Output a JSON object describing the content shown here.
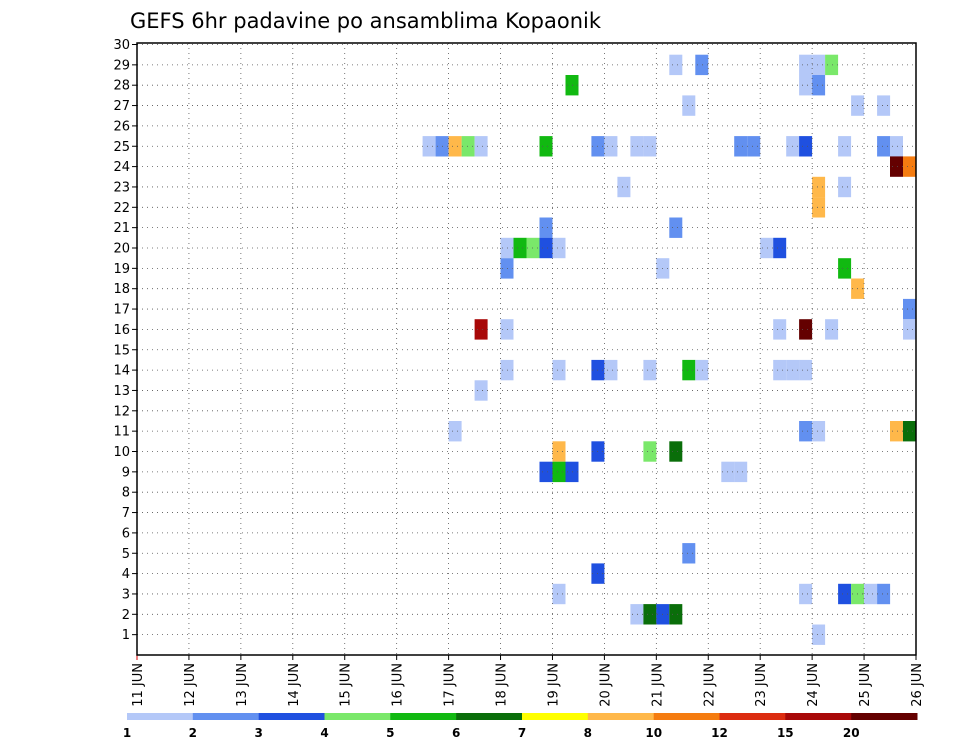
{
  "chart_data": {
    "type": "heatmap",
    "title": "GEFS 6hr padavine po ansamblima Kopaonik",
    "y_ticks": [
      1,
      2,
      3,
      4,
      5,
      6,
      7,
      8,
      9,
      10,
      11,
      12,
      13,
      14,
      15,
      16,
      17,
      18,
      19,
      20,
      21,
      22,
      23,
      24,
      25,
      26,
      27,
      28,
      29,
      30
    ],
    "x_ticks": [
      "11 JUN",
      "12 JUN",
      "13 JUN",
      "14 JUN",
      "15 JUN",
      "16 JUN",
      "17 JUN",
      "18 JUN",
      "19 JUN",
      "20 JUN",
      "21 JUN",
      "22 JUN",
      "23 JUN",
      "24 JUN",
      "25 JUN",
      "26 JUN"
    ],
    "colorbar": {
      "colors": [
        "#b4c8f8",
        "#6290f0",
        "#1f50e0",
        "#7ae86a",
        "#11b911",
        "#0a6e0a",
        "#ffff00",
        "#ffb84a",
        "#f57c10",
        "#dc2c10",
        "#a80808",
        "#640000"
      ],
      "labels": [
        "1",
        "2",
        "3",
        "4",
        "5",
        "6",
        "7",
        "8",
        "10",
        "12",
        "15",
        "20"
      ]
    },
    "cells": [
      {
        "d": "2025-06-21 06",
        "m": 29,
        "c": 1
      },
      {
        "d": "2025-06-21 18",
        "m": 29,
        "c": 2
      },
      {
        "d": "2025-06-23 18",
        "m": 29,
        "c": 1
      },
      {
        "d": "2025-06-24 00",
        "m": 29,
        "c": 1
      },
      {
        "d": "2025-06-24 06",
        "m": 29,
        "c": 4
      },
      {
        "d": "2025-06-19 06",
        "m": 28,
        "c": 5
      },
      {
        "d": "2025-06-23 18",
        "m": 28,
        "c": 1
      },
      {
        "d": "2025-06-24 00",
        "m": 28,
        "c": 2
      },
      {
        "d": "2025-06-21 12",
        "m": 27,
        "c": 1
      },
      {
        "d": "2025-06-24 18",
        "m": 27,
        "c": 1
      },
      {
        "d": "2025-06-25 06",
        "m": 27,
        "c": 1
      },
      {
        "d": "2025-06-16 12",
        "m": 25,
        "c": 1
      },
      {
        "d": "2025-06-16 18",
        "m": 25,
        "c": 2
      },
      {
        "d": "2025-06-17 00",
        "m": 25,
        "c": 8
      },
      {
        "d": "2025-06-17 06",
        "m": 25,
        "c": 4
      },
      {
        "d": "2025-06-17 12",
        "m": 25,
        "c": 1
      },
      {
        "d": "2025-06-18 18",
        "m": 25,
        "c": 5
      },
      {
        "d": "2025-06-19 18",
        "m": 25,
        "c": 2
      },
      {
        "d": "2025-06-20 00",
        "m": 25,
        "c": 1
      },
      {
        "d": "2025-06-20 12",
        "m": 25,
        "c": 1
      },
      {
        "d": "2025-06-20 18",
        "m": 25,
        "c": 1
      },
      {
        "d": "2025-06-22 12",
        "m": 25,
        "c": 2
      },
      {
        "d": "2025-06-22 18",
        "m": 25,
        "c": 2
      },
      {
        "d": "2025-06-23 12",
        "m": 25,
        "c": 1
      },
      {
        "d": "2025-06-23 18",
        "m": 25,
        "c": 3
      },
      {
        "d": "2025-06-24 12",
        "m": 25,
        "c": 1
      },
      {
        "d": "2025-06-25 06",
        "m": 25,
        "c": 2
      },
      {
        "d": "2025-06-25 12",
        "m": 25,
        "c": 1
      },
      {
        "d": "2025-06-25 12",
        "m": 24,
        "c": 12
      },
      {
        "d": "2025-06-25 18",
        "m": 24,
        "c": 9
      },
      {
        "d": "2025-06-20 06",
        "m": 23,
        "c": 1
      },
      {
        "d": "2025-06-24 00",
        "m": 23,
        "c": 8
      },
      {
        "d": "2025-06-24 12",
        "m": 23,
        "c": 1
      },
      {
        "d": "2025-06-24 00",
        "m": 22,
        "c": 8
      },
      {
        "d": "2025-06-18 18",
        "m": 21,
        "c": 2
      },
      {
        "d": "2025-06-21 06",
        "m": 21,
        "c": 2
      },
      {
        "d": "2025-06-18 00",
        "m": 20,
        "c": 1
      },
      {
        "d": "2025-06-18 06",
        "m": 20,
        "c": 5
      },
      {
        "d": "2025-06-18 12",
        "m": 20,
        "c": 4
      },
      {
        "d": "2025-06-18 18",
        "m": 20,
        "c": 3
      },
      {
        "d": "2025-06-19 00",
        "m": 20,
        "c": 1
      },
      {
        "d": "2025-06-23 00",
        "m": 20,
        "c": 1
      },
      {
        "d": "2025-06-23 06",
        "m": 20,
        "c": 3
      },
      {
        "d": "2025-06-18 00",
        "m": 19,
        "c": 2
      },
      {
        "d": "2025-06-21 00",
        "m": 19,
        "c": 1
      },
      {
        "d": "2025-06-24 12",
        "m": 19,
        "c": 5
      },
      {
        "d": "2025-06-24 18",
        "m": 18,
        "c": 8
      },
      {
        "d": "2025-06-25 18",
        "m": 17,
        "c": 2
      },
      {
        "d": "2025-06-17 12",
        "m": 16,
        "c": 11
      },
      {
        "d": "2025-06-18 00",
        "m": 16,
        "c": 1
      },
      {
        "d": "2025-06-23 06",
        "m": 16,
        "c": 1
      },
      {
        "d": "2025-06-23 18",
        "m": 16,
        "c": 12
      },
      {
        "d": "2025-06-24 06",
        "m": 16,
        "c": 1
      },
      {
        "d": "2025-06-25 18",
        "m": 16,
        "c": 1
      },
      {
        "d": "2025-06-18 00",
        "m": 14,
        "c": 1
      },
      {
        "d": "2025-06-19 00",
        "m": 14,
        "c": 1
      },
      {
        "d": "2025-06-19 18",
        "m": 14,
        "c": 3
      },
      {
        "d": "2025-06-20 00",
        "m": 14,
        "c": 1
      },
      {
        "d": "2025-06-20 18",
        "m": 14,
        "c": 1
      },
      {
        "d": "2025-06-21 12",
        "m": 14,
        "c": 5
      },
      {
        "d": "2025-06-21 18",
        "m": 14,
        "c": 1
      },
      {
        "d": "2025-06-23 06",
        "m": 14,
        "c": 1
      },
      {
        "d": "2025-06-23 12",
        "m": 14,
        "c": 1
      },
      {
        "d": "2025-06-23 18",
        "m": 14,
        "c": 1
      },
      {
        "d": "2025-06-17 12",
        "m": 13,
        "c": 1
      },
      {
        "d": "2025-06-17 00",
        "m": 11,
        "c": 1
      },
      {
        "d": "2025-06-23 18",
        "m": 11,
        "c": 2
      },
      {
        "d": "2025-06-24 00",
        "m": 11,
        "c": 1
      },
      {
        "d": "2025-06-25 12",
        "m": 11,
        "c": 8
      },
      {
        "d": "2025-06-25 18",
        "m": 11,
        "c": 6
      },
      {
        "d": "2025-06-19 00",
        "m": 10,
        "c": 8
      },
      {
        "d": "2025-06-19 18",
        "m": 10,
        "c": 3
      },
      {
        "d": "2025-06-20 18",
        "m": 10,
        "c": 4
      },
      {
        "d": "2025-06-21 06",
        "m": 10,
        "c": 6
      },
      {
        "d": "2025-06-18 18",
        "m": 9,
        "c": 3
      },
      {
        "d": "2025-06-19 00",
        "m": 9,
        "c": 5
      },
      {
        "d": "2025-06-19 06",
        "m": 9,
        "c": 3
      },
      {
        "d": "2025-06-22 06",
        "m": 9,
        "c": 1
      },
      {
        "d": "2025-06-22 12",
        "m": 9,
        "c": 1
      },
      {
        "d": "2025-06-21 12",
        "m": 5,
        "c": 2
      },
      {
        "d": "2025-06-19 18",
        "m": 4,
        "c": 3
      },
      {
        "d": "2025-06-19 00",
        "m": 3,
        "c": 1
      },
      {
        "d": "2025-06-23 18",
        "m": 3,
        "c": 1
      },
      {
        "d": "2025-06-24 12",
        "m": 3,
        "c": 3
      },
      {
        "d": "2025-06-24 18",
        "m": 3,
        "c": 4
      },
      {
        "d": "2025-06-25 00",
        "m": 3,
        "c": 1
      },
      {
        "d": "2025-06-25 06",
        "m": 3,
        "c": 2
      },
      {
        "d": "2025-06-20 12",
        "m": 2,
        "c": 1
      },
      {
        "d": "2025-06-20 18",
        "m": 2,
        "c": 6
      },
      {
        "d": "2025-06-21 00",
        "m": 2,
        "c": 3
      },
      {
        "d": "2025-06-21 06",
        "m": 2,
        "c": 6
      },
      {
        "d": "2025-06-24 00",
        "m": 1,
        "c": 1
      }
    ]
  }
}
